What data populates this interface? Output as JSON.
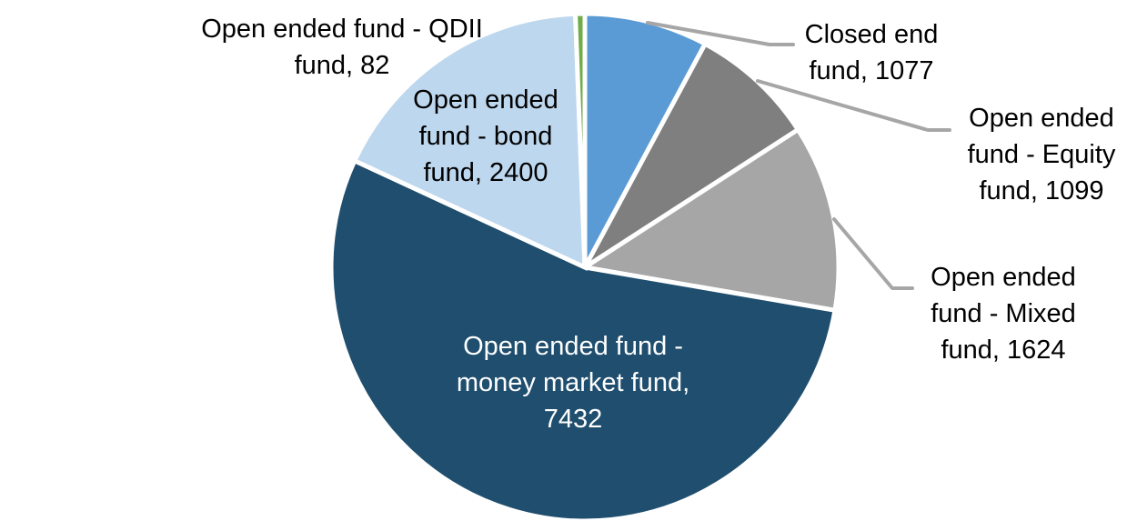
{
  "chart_data": {
    "type": "pie",
    "title": "",
    "total": 13714,
    "start_angle_deg": 0,
    "direction": "clockwise",
    "background": "#ffffff",
    "leader_line_color": "#a6a6a6",
    "slices": [
      {
        "name": "Closed end fund",
        "value": 1077,
        "color": "#5b9bd5",
        "label": {
          "lines": [
            "Closed end",
            "fund, 1077"
          ],
          "text_color": "#000000",
          "placement": "outside-right",
          "leader": true
        }
      },
      {
        "name": "Open ended fund - Equity fund",
        "value": 1099,
        "color": "#7f7f7f",
        "label": {
          "lines": [
            "Open ended",
            "fund - Equity",
            "fund, 1099"
          ],
          "text_color": "#000000",
          "placement": "outside-right",
          "leader": true
        }
      },
      {
        "name": "Open ended fund - Mixed fund",
        "value": 1624,
        "color": "#a6a6a6",
        "label": {
          "lines": [
            "Open ended",
            "fund - Mixed",
            "fund, 1624"
          ],
          "text_color": "#000000",
          "placement": "outside-right",
          "leader": true
        }
      },
      {
        "name": "Open ended fund - money market fund",
        "value": 7432,
        "color": "#1f4e6e",
        "label": {
          "lines": [
            "Open ended fund -",
            "money market fund,",
            "7432"
          ],
          "text_color": "#ffffff",
          "placement": "inside",
          "leader": false
        }
      },
      {
        "name": "Open ended fund - bond fund",
        "value": 2400,
        "color": "#bdd7ee",
        "label": {
          "lines": [
            "Open ended",
            "fund - bond",
            "fund, 2400"
          ],
          "text_color": "#000000",
          "placement": "inside",
          "leader": false
        }
      },
      {
        "name": "Open ended fund - QDII fund",
        "value": 82,
        "color": "#70ad47",
        "label": {
          "lines": [
            "Open ended fund - QDII",
            "fund, 82"
          ],
          "text_color": "#000000",
          "placement": "outside-left",
          "leader": false
        }
      }
    ]
  }
}
